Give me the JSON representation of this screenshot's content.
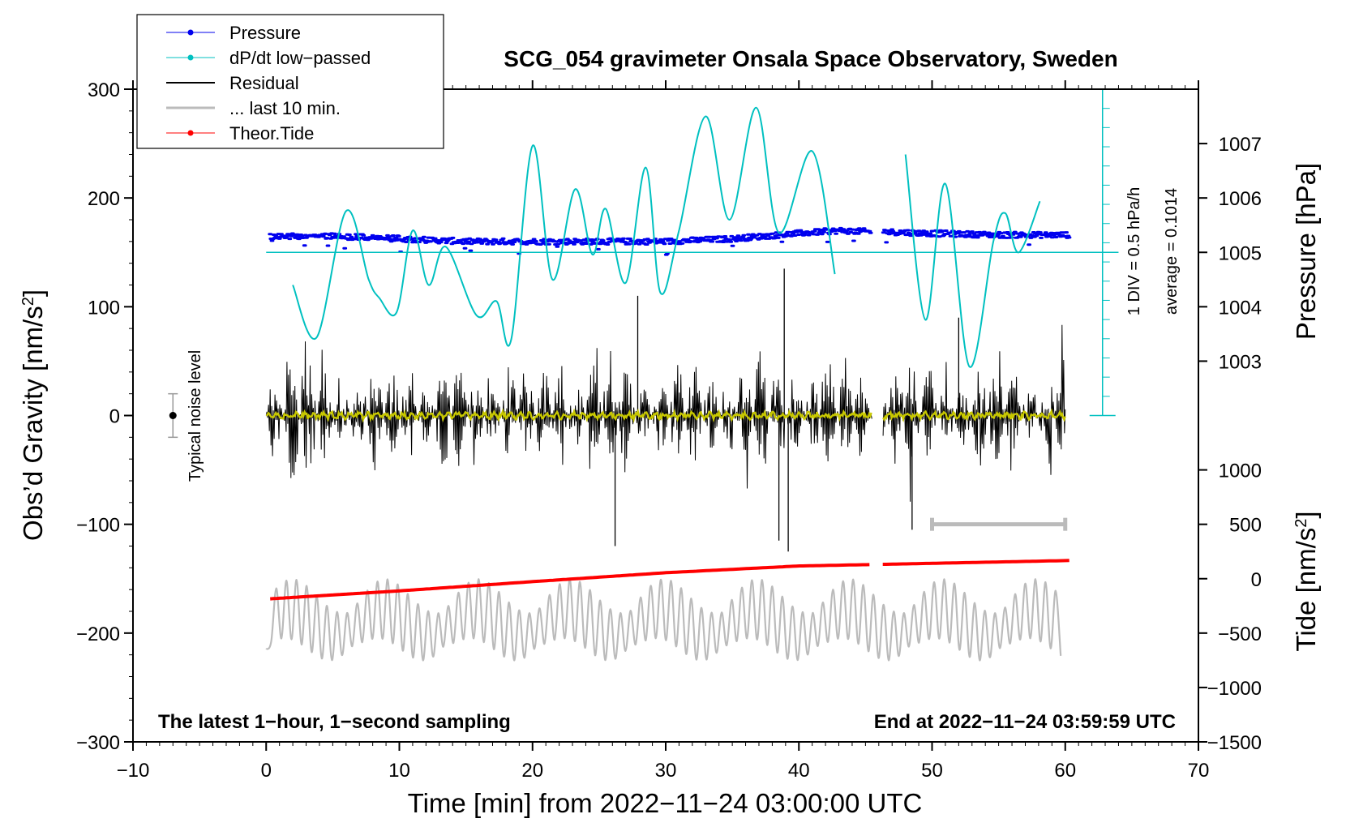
{
  "chart_data": {
    "type": "line",
    "title": "SCG_054 gravimeter Onsala Space Observatory, Sweden",
    "xlabel": "Time [min] from 2022−11−24 03:00:00 UTC",
    "ylabel_left": "Obs’d Gravity [nm/s",
    "ylabel_left_sup": "2",
    "ylabel_left_end": "]",
    "ylabel_right_top": "Pressure [hPa]",
    "ylabel_right_bottom": "Tide [nm/s",
    "ylabel_right_bottom_sup": "2",
    "ylabel_right_bottom_end": "]",
    "xlim": [
      -10,
      70
    ],
    "ylim": [
      -300,
      300
    ],
    "x_ticks": [
      -10,
      0,
      10,
      20,
      30,
      40,
      50,
      60,
      70
    ],
    "x_tick_labels": [
      "−10",
      "0",
      "10",
      "20",
      "30",
      "40",
      "50",
      "60",
      "70"
    ],
    "y_ticks": [
      300,
      200,
      100,
      0,
      -100,
      -200,
      -300
    ],
    "y_tick_labels": [
      "300",
      "200",
      "100",
      "0",
      "−100",
      "−200",
      "−300"
    ],
    "pressure_axis": {
      "ticks": [
        1007,
        1006,
        1005,
        1004,
        1003
      ],
      "tick_labels": [
        "1007",
        "1006",
        "1005",
        "1004",
        "1003"
      ],
      "gravity_at_1005": 150,
      "gravity_per_hPa": 50
    },
    "tide_axis": {
      "ticks": [
        1000,
        500,
        0,
        -500,
        -1000,
        -1500
      ],
      "tick_labels": [
        "1000",
        "500",
        "0",
        "−500",
        "−1000",
        "−1500"
      ],
      "gravity_at_0": -150,
      "gravity_per_unit": 0.1
    },
    "scale_bar": {
      "label1": "1 DIV = 0.5 hPa/h",
      "label2": "average = 0.1014",
      "x": 62.8,
      "y_from": 0,
      "y_to": 300
    },
    "noise_level": {
      "label": "Typical noise level",
      "x": -7,
      "center": 0,
      "half_range": 20
    },
    "last10_bar": {
      "x_from": 50,
      "x_to": 60,
      "y": -100
    },
    "annotations": {
      "bottom_left": "The latest 1−hour, 1−second sampling",
      "bottom_right": "End at 2022−11−24 03:59:59 UTC"
    },
    "legend": [
      {
        "label": "Pressure",
        "color": "#0000ee",
        "marker": true
      },
      {
        "label": "dP/dt low−passed",
        "color": "#00c0c0",
        "marker": true
      },
      {
        "label": "Residual",
        "color": "#000000",
        "marker": false
      },
      {
        "label": "... last 10 min.",
        "color": "#bbbbbb",
        "marker": false
      },
      {
        "label": "Theor.Tide",
        "color": "#ff0000",
        "marker": true
      }
    ],
    "series": [
      {
        "name": "Pressure",
        "color": "#0000ee",
        "units": "hPa",
        "gap": [
          45.4,
          46.3
        ],
        "x": [
          0.3,
          5,
          10,
          15,
          20,
          25,
          30,
          35,
          40,
          43,
          45.3,
          46.3,
          50,
          55,
          60.3
        ],
        "values": [
          1005.3,
          1005.3,
          1005.25,
          1005.2,
          1005.2,
          1005.2,
          1005.2,
          1005.25,
          1005.35,
          1005.4,
          1005.38,
          1005.38,
          1005.35,
          1005.32,
          1005.32
        ]
      },
      {
        "name": "dP/dt low−passed",
        "color": "#00c0c0",
        "units": "nm/s2",
        "segments": [
          {
            "x": [
              2,
              3.8,
              6,
              7.7,
              8.5,
              9.8,
              11,
              12.2,
              13.5,
              15.8,
              17.3,
              18.4,
              20,
              21.5,
              23.2,
              24.5,
              25.5,
              27,
              28.5,
              29.6,
              31,
              33,
              34.8,
              36.8,
              38.5,
              41,
              42.7
            ],
            "values": [
              120,
              72,
              188,
              125,
              108,
              95,
              170,
              120,
              155,
              92,
              105,
              70,
              248,
              125,
              208,
              148,
              190,
              122,
              228,
              113,
              170,
              275,
              180,
              283,
              168,
              243,
              130
            ]
          },
          {
            "x": [
              48,
              49.5,
              51,
              52.8,
              54.6,
              55.5,
              56.5,
              58.1
            ],
            "values": [
              240,
              88,
              213,
              45,
              160,
              186,
              150,
              197
            ]
          }
        ]
      },
      {
        "name": "Residual",
        "color": "#000000",
        "units": "nm/s2",
        "gap": [
          45.5,
          46.3
        ],
        "x_range": [
          0,
          60
        ],
        "amplitude": 65,
        "spikes": [
          [
            26.2,
            -120
          ],
          [
            27.9,
            110
          ],
          [
            38.5,
            -115
          ],
          [
            38.9,
            135
          ],
          [
            39.2,
            -125
          ],
          [
            48.5,
            -105
          ],
          [
            52,
            90
          ]
        ]
      },
      {
        "name": "... last 10 min.",
        "color": "#bbbbbb",
        "units": "nm/s2",
        "x_range": [
          0,
          60
        ],
        "center": -190,
        "amplitude": 60,
        "start_value": -215,
        "end_value": -200
      },
      {
        "name": "Theor.Tide",
        "color": "#ff0000",
        "units": "nm/s2",
        "gap": [
          45.5,
          46.3
        ],
        "x": [
          0.3,
          10,
          20,
          30,
          40,
          45.5,
          46.3,
          60.3
        ],
        "values": [
          -185,
          -112,
          -27,
          55,
          117,
          130,
          132,
          167
        ]
      },
      {
        "name": "Residual low−pass",
        "color": "#c8c800",
        "units": "nm/s2",
        "gap": [
          45.5,
          46.3
        ],
        "x_range": [
          0,
          60
        ],
        "amplitude": 3
      }
    ]
  }
}
